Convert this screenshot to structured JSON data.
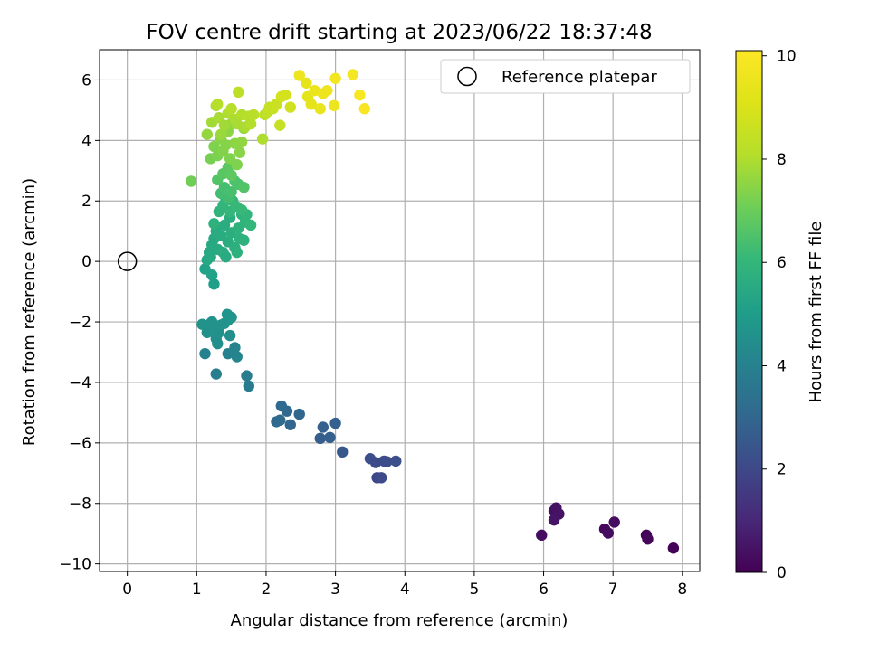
{
  "chart_data": {
    "type": "scatter",
    "title": "FOV centre drift starting at 2023/06/22 18:37:48",
    "xlabel": "Angular distance from reference (arcmin)",
    "ylabel": "Rotation from reference (arcmin)",
    "xlim": [
      -0.4,
      8.25
    ],
    "ylim": [
      -10.25,
      7.0
    ],
    "xticks": [
      0,
      1,
      2,
      3,
      4,
      5,
      6,
      7,
      8
    ],
    "yticks": [
      -10,
      -8,
      -6,
      -4,
      -2,
      0,
      2,
      4,
      6
    ],
    "grid": true,
    "legend": {
      "position": "top-right",
      "entries": [
        "Reference platepar"
      ]
    },
    "colorbar": {
      "label": "Hours from first FF file",
      "min": 0,
      "max": 10.1,
      "ticks": [
        0,
        2,
        4,
        6,
        8,
        10
      ],
      "colormap": "viridis"
    },
    "reference_point": {
      "x": 0,
      "y": 0,
      "label": "Reference platepar"
    },
    "series": [
      {
        "points": [
          [
            5.97,
            -9.05,
            0.3
          ],
          [
            6.15,
            -8.25,
            0.35
          ],
          [
            6.18,
            -8.15,
            0.4
          ],
          [
            6.22,
            -8.35,
            0.45
          ],
          [
            6.15,
            -8.55,
            0.5
          ],
          [
            6.88,
            -8.85,
            0.2
          ],
          [
            6.93,
            -8.98,
            0.25
          ],
          [
            7.02,
            -8.62,
            0.3
          ],
          [
            7.48,
            -9.05,
            0.1
          ],
          [
            7.5,
            -9.18,
            0.15
          ],
          [
            7.87,
            -9.48,
            0.05
          ],
          [
            3.5,
            -6.52,
            2.2
          ],
          [
            3.58,
            -6.65,
            2.1
          ],
          [
            3.6,
            -7.15,
            2.0
          ],
          [
            3.66,
            -7.15,
            2.05
          ],
          [
            3.7,
            -6.6,
            2.1
          ],
          [
            3.74,
            -6.62,
            2.15
          ],
          [
            3.87,
            -6.6,
            2.2
          ],
          [
            3.1,
            -6.3,
            2.5
          ],
          [
            2.78,
            -5.85,
            2.7
          ],
          [
            2.82,
            -5.48,
            2.8
          ],
          [
            2.92,
            -5.82,
            2.75
          ],
          [
            3.0,
            -5.35,
            2.8
          ],
          [
            2.48,
            -5.05,
            3.0
          ],
          [
            2.35,
            -5.4,
            3.0
          ],
          [
            2.3,
            -4.95,
            3.05
          ],
          [
            2.22,
            -4.78,
            3.1
          ],
          [
            2.15,
            -5.3,
            3.1
          ],
          [
            2.2,
            -5.25,
            3.15
          ],
          [
            1.72,
            -3.78,
            3.8
          ],
          [
            1.75,
            -4.12,
            3.75
          ],
          [
            1.28,
            -3.72,
            3.9
          ],
          [
            1.12,
            -3.05,
            4.0
          ],
          [
            1.45,
            -3.05,
            4.05
          ],
          [
            1.58,
            -3.15,
            4.1
          ],
          [
            1.55,
            -2.85,
            4.1
          ],
          [
            1.08,
            -2.08,
            4.6
          ],
          [
            1.15,
            -2.35,
            4.55
          ],
          [
            1.2,
            -2.05,
            4.6
          ],
          [
            1.25,
            -2.25,
            4.6
          ],
          [
            1.28,
            -2.55,
            4.5
          ],
          [
            1.3,
            -2.72,
            4.5
          ],
          [
            1.32,
            -2.35,
            4.55
          ],
          [
            1.35,
            -2.1,
            4.6
          ],
          [
            1.4,
            -2.05,
            4.6
          ],
          [
            1.45,
            -1.95,
            4.65
          ],
          [
            1.48,
            -2.45,
            4.5
          ],
          [
            1.5,
            -1.85,
            4.7
          ],
          [
            1.44,
            -1.75,
            4.7
          ],
          [
            1.22,
            -2.0,
            4.65
          ],
          [
            1.12,
            -0.25,
            5.2
          ],
          [
            1.22,
            -0.45,
            5.2
          ],
          [
            1.25,
            -0.75,
            5.1
          ],
          [
            1.15,
            0.05,
            5.4
          ],
          [
            1.18,
            0.3,
            5.45
          ],
          [
            1.2,
            0.15,
            5.5
          ],
          [
            1.22,
            0.55,
            5.5
          ],
          [
            1.25,
            0.75,
            5.5
          ],
          [
            1.28,
            1.0,
            5.55
          ],
          [
            1.3,
            0.4,
            5.5
          ],
          [
            1.35,
            0.85,
            5.6
          ],
          [
            1.38,
            0.3,
            5.6
          ],
          [
            1.4,
            1.2,
            5.6
          ],
          [
            1.42,
            0.15,
            5.55
          ],
          [
            1.45,
            0.65,
            5.6
          ],
          [
            1.48,
            1.45,
            5.65
          ],
          [
            1.5,
            0.95,
            5.7
          ],
          [
            1.55,
            0.45,
            5.7
          ],
          [
            1.58,
            0.3,
            5.75
          ],
          [
            1.6,
            1.1,
            5.8
          ],
          [
            1.62,
            0.75,
            5.8
          ],
          [
            1.65,
            1.55,
            5.85
          ],
          [
            1.68,
            0.7,
            5.8
          ],
          [
            1.7,
            1.3,
            5.9
          ],
          [
            1.72,
            1.55,
            5.95
          ],
          [
            1.78,
            1.2,
            6.0
          ],
          [
            1.25,
            1.25,
            5.8
          ],
          [
            1.32,
            1.65,
            5.9
          ],
          [
            1.38,
            1.85,
            5.95
          ],
          [
            1.42,
            2.05,
            6.0
          ],
          [
            1.48,
            1.65,
            6.0
          ],
          [
            1.52,
            2.0,
            6.05
          ],
          [
            1.58,
            1.8,
            6.1
          ],
          [
            1.65,
            1.7,
            6.1
          ],
          [
            1.35,
            2.25,
            6.3
          ],
          [
            1.4,
            2.45,
            6.35
          ],
          [
            1.45,
            2.1,
            6.3
          ],
          [
            1.5,
            2.3,
            6.4
          ],
          [
            1.55,
            2.65,
            6.5
          ],
          [
            1.6,
            2.55,
            6.5
          ],
          [
            1.68,
            2.45,
            6.6
          ],
          [
            1.3,
            2.7,
            6.6
          ],
          [
            1.38,
            2.9,
            6.7
          ],
          [
            1.45,
            3.1,
            6.75
          ],
          [
            1.5,
            2.85,
            6.8
          ],
          [
            0.92,
            2.65,
            7.1
          ],
          [
            1.15,
            4.2,
            7.6
          ],
          [
            1.2,
            3.4,
            7.2
          ],
          [
            1.25,
            3.8,
            7.3
          ],
          [
            1.3,
            3.5,
            7.25
          ],
          [
            1.35,
            4.05,
            7.4
          ],
          [
            1.38,
            3.65,
            7.35
          ],
          [
            1.42,
            3.85,
            7.4
          ],
          [
            1.45,
            4.3,
            7.5
          ],
          [
            1.48,
            3.4,
            7.3
          ],
          [
            1.5,
            4.55,
            7.6
          ],
          [
            1.55,
            3.9,
            7.5
          ],
          [
            1.58,
            3.2,
            7.3
          ],
          [
            1.62,
            3.6,
            7.45
          ],
          [
            1.65,
            3.95,
            7.55
          ],
          [
            1.68,
            4.4,
            7.65
          ],
          [
            1.22,
            4.6,
            7.8
          ],
          [
            1.28,
            5.15,
            8.0
          ],
          [
            1.32,
            4.75,
            7.9
          ],
          [
            1.35,
            4.2,
            7.7
          ],
          [
            1.4,
            4.5,
            7.8
          ],
          [
            1.45,
            4.9,
            8.0
          ],
          [
            1.5,
            5.05,
            8.1
          ],
          [
            1.55,
            4.7,
            7.95
          ],
          [
            1.58,
            4.55,
            7.9
          ],
          [
            1.6,
            5.6,
            8.3
          ],
          [
            1.65,
            4.85,
            8.05
          ],
          [
            1.7,
            4.45,
            7.95
          ],
          [
            1.75,
            4.8,
            8.1
          ],
          [
            1.78,
            4.55,
            8.05
          ],
          [
            1.82,
            4.85,
            8.2
          ],
          [
            1.3,
            5.2,
            8.1
          ],
          [
            1.95,
            4.05,
            8.0
          ],
          [
            1.98,
            4.85,
            8.3
          ],
          [
            2.02,
            4.95,
            8.4
          ],
          [
            2.05,
            5.1,
            8.5
          ],
          [
            2.1,
            5.05,
            8.55
          ],
          [
            2.15,
            5.2,
            8.6
          ],
          [
            2.2,
            4.5,
            8.5
          ],
          [
            2.22,
            5.45,
            8.8
          ],
          [
            2.28,
            5.5,
            8.85
          ],
          [
            2.35,
            5.1,
            8.75
          ],
          [
            2.48,
            6.15,
            9.6
          ],
          [
            2.58,
            5.9,
            9.4
          ],
          [
            2.6,
            5.45,
            9.3
          ],
          [
            2.65,
            5.2,
            9.35
          ],
          [
            2.7,
            5.65,
            9.5
          ],
          [
            2.78,
            5.05,
            9.45
          ],
          [
            2.82,
            5.55,
            9.6
          ],
          [
            2.88,
            5.65,
            9.65
          ],
          [
            2.98,
            5.15,
            9.6
          ],
          [
            3.0,
            6.05,
            9.8
          ],
          [
            3.25,
            6.18,
            9.85
          ],
          [
            3.35,
            5.5,
            9.9
          ],
          [
            3.42,
            5.05,
            9.95
          ]
        ]
      }
    ]
  }
}
